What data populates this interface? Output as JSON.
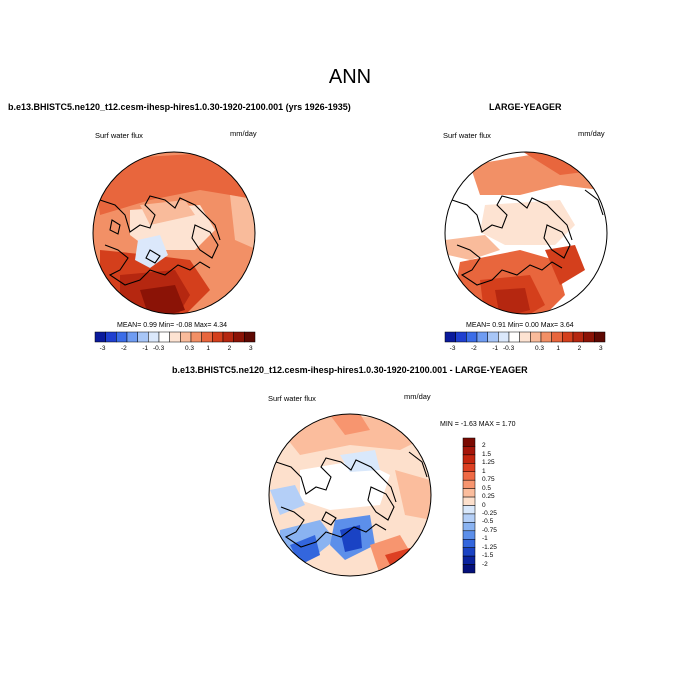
{
  "page": {
    "title": "ANN"
  },
  "panel_left": {
    "header": "b.e13.BHISTC5.ne120_t12.cesm-ihesp-hires1.0.30-1920-2100.001 (yrs 1926-1935)",
    "variable": "Surf water flux",
    "units": "mm/day",
    "stats": {
      "mean_label": "MEAN=",
      "mean": "0.99",
      "min_label": "Min=",
      "min": "-0.08",
      "max_label": "Max=",
      "max": "4.34"
    }
  },
  "panel_right": {
    "header": "LARGE-YEAGER",
    "variable": "Surf water flux",
    "units": "mm/day",
    "stats": {
      "mean_label": "MEAN=",
      "mean": "0.91",
      "min_label": "Min=",
      "min": "0.00",
      "max_label": "Max=",
      "max": "3.64"
    }
  },
  "panel_diff": {
    "header": "b.e13.BHISTC5.ne120_t12.cesm-ihesp-hires1.0.30-1920-2100.001 - LARGE-YEAGER",
    "variable": "Surf water flux",
    "units": "mm/day",
    "minmax": {
      "min_label": "MIN =",
      "min": "-1.63",
      "max_label": "MAX =",
      "max": "1.70"
    }
  },
  "colorbar_horizontal": {
    "labels": [
      "-3",
      "-2",
      "-1",
      "-0.3",
      "0.3",
      "1",
      "2",
      "3"
    ],
    "colors": [
      "#0a1a9c",
      "#1f3fd0",
      "#3b6de8",
      "#6f9cf2",
      "#a8c6f7",
      "#dbe8fb",
      "#ffffff",
      "#fde3d2",
      "#f9bb9b",
      "#f29066",
      "#e8663d",
      "#d43f1c",
      "#b52710",
      "#8b1306",
      "#5e0903"
    ]
  },
  "colorbar_vertical": {
    "labels": [
      "2",
      "1.5",
      "1.25",
      "1",
      "0.75",
      "0.5",
      "0.25",
      "0",
      "-0.25",
      "-0.5",
      "-0.75",
      "-1",
      "-1.25",
      "-1.5",
      "-2"
    ],
    "colors": [
      "#7a0a02",
      "#a5160a",
      "#c4260f",
      "#dd4022",
      "#ef6a45",
      "#f7956f",
      "#fbbd9d",
      "#fde0cc",
      "#d9e8fb",
      "#b4cff7",
      "#8ab3f1",
      "#5c8fea",
      "#3366dd",
      "#1a43c4",
      "#0a239e",
      "#04107a"
    ]
  }
}
